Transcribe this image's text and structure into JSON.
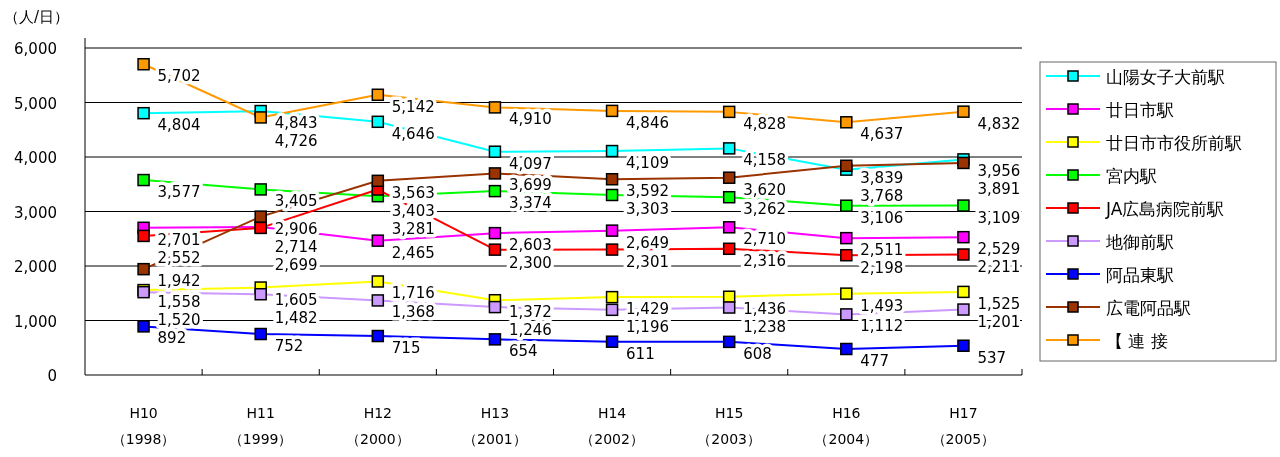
{
  "chart_data": {
    "type": "line",
    "ylabel": "（人/日）",
    "categories": [
      "H10\n（1998）",
      "H11\n（1999）",
      "H12\n（2000）",
      "H13\n（2001）",
      "H14\n（2002）",
      "H15\n（2003）",
      "H16\n（2004）",
      "H17\n（2005）"
    ],
    "ylim": [
      0,
      6000
    ],
    "yticks": [
      {
        "value": 0,
        "label": "0"
      },
      {
        "value": 1000,
        "label": "1,000"
      },
      {
        "value": 2000,
        "label": "2,000"
      },
      {
        "value": 3000,
        "label": "3,000"
      },
      {
        "value": 4000,
        "label": "4,000"
      },
      {
        "value": 5000,
        "label": "5,000"
      },
      {
        "value": 6000,
        "label": "6,000"
      }
    ],
    "grid": "y",
    "legend": "right",
    "marker": "square",
    "line_style": "solid",
    "data_labels": true,
    "series": [
      {
        "name": "山陽女子大前駅",
        "color": "#00ffff",
        "values": [
          4804,
          4843,
          4646,
          4097,
          4109,
          4158,
          3768,
          3956
        ],
        "value_labels": [
          "4,804",
          "4,843",
          "4,646",
          "4,097",
          "4,109",
          "4,158",
          "3,768",
          "3,956"
        ]
      },
      {
        "name": "廿日市駅",
        "color": "#ff00ff",
        "values": [
          2701,
          2714,
          2465,
          2603,
          2649,
          2710,
          2511,
          2529
        ],
        "value_labels": [
          "2,701",
          "2,714",
          "2,465",
          "2,603",
          "2,649",
          "2,710",
          "2,511",
          "2,529"
        ]
      },
      {
        "name": "廿日市市役所前駅",
        "color": "#ffff00",
        "values": [
          1558,
          1605,
          1716,
          1372,
          1429,
          1436,
          1493,
          1525
        ],
        "value_labels": [
          "1,558",
          "1,605",
          "1,716",
          "1,372",
          "1,429",
          "1,436",
          "1,493",
          "1,525"
        ]
      },
      {
        "name": "宮内駅",
        "color": "#00ff00",
        "values": [
          3577,
          3405,
          3281,
          3374,
          3303,
          3262,
          3106,
          3109
        ],
        "value_labels": [
          "3,577",
          "3,405",
          "3,281",
          "3,374",
          "3,303",
          "3,262",
          "3,106",
          "3,109"
        ]
      },
      {
        "name": "JA広島病院前駅",
        "color": "#ff0000",
        "values": [
          2552,
          2699,
          3403,
          2300,
          2301,
          2316,
          2198,
          2211
        ],
        "value_labels": [
          "2,552",
          "2,699",
          "3,403",
          "2,300",
          "2,301",
          "2,316",
          "2,198",
          "2,211"
        ]
      },
      {
        "name": "地御前駅",
        "color": "#cc99ff",
        "values": [
          1520,
          1482,
          1368,
          1246,
          1196,
          1238,
          1112,
          1201
        ],
        "value_labels": [
          "1,520",
          "1,482",
          "1,368",
          "1,246",
          "1,196",
          "1,238",
          "1,112",
          "1,201"
        ]
      },
      {
        "name": "阿品東駅",
        "color": "#0000ff",
        "values": [
          892,
          752,
          715,
          654,
          611,
          608,
          477,
          537
        ],
        "value_labels": [
          "892",
          "752",
          "715",
          "654",
          "611",
          "608",
          "477",
          "537"
        ]
      },
      {
        "name": "広電阿品駅",
        "color": "#993300",
        "values": [
          1942,
          2906,
          3563,
          3699,
          3592,
          3620,
          3839,
          3891
        ],
        "value_labels": [
          "1,942",
          "2,906",
          "3,563",
          "3,699",
          "3,592",
          "3,620",
          "3,839",
          "3,891"
        ]
      },
      {
        "name": "【 連 接",
        "color": "#ff9900",
        "values": [
          5702,
          4726,
          5142,
          4910,
          4846,
          4828,
          4637,
          4832
        ],
        "value_labels": [
          "5,702",
          "4,726",
          "5,142",
          "4,910",
          "4,846",
          "4,828",
          "4,637",
          "4,832"
        ]
      }
    ]
  }
}
